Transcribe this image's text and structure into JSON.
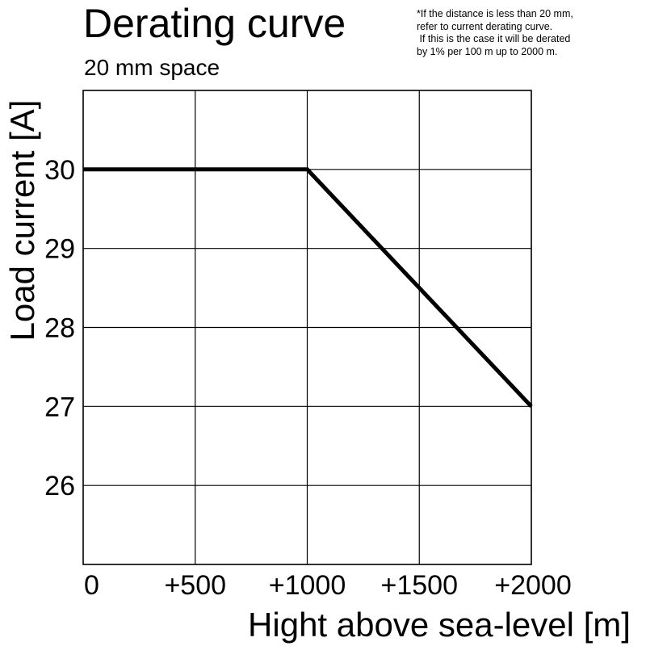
{
  "header": {
    "title": "Derating curve",
    "subtitle": "20 mm space",
    "note_lines": [
      "*If the distance is less than 20 mm,",
      "refer to current derating curve.",
      " If this is the case it will be derated",
      "by 1% per 100 m up to 2000 m."
    ]
  },
  "chart_data": {
    "type": "line",
    "title": "Derating curve",
    "subtitle": "20 mm space",
    "xlabel": "Hight above sea-level [m]",
    "ylabel": "Load current [A]",
    "xlim": [
      0,
      2000
    ],
    "ylim": [
      25,
      31
    ],
    "x_ticks": [
      0,
      500,
      1000,
      1500,
      2000
    ],
    "x_tick_labels": [
      "0",
      "+500",
      "+1000",
      "+1500",
      "+2000"
    ],
    "y_ticks": [
      26,
      27,
      28,
      29,
      30
    ],
    "y_tick_labels": [
      "26",
      "27",
      "28",
      "29",
      "30"
    ],
    "grid": true,
    "legend": false,
    "series": [
      {
        "x": [
          0,
          1000,
          2000
        ],
        "y": [
          30,
          30,
          27
        ],
        "color": "#000000"
      }
    ]
  }
}
